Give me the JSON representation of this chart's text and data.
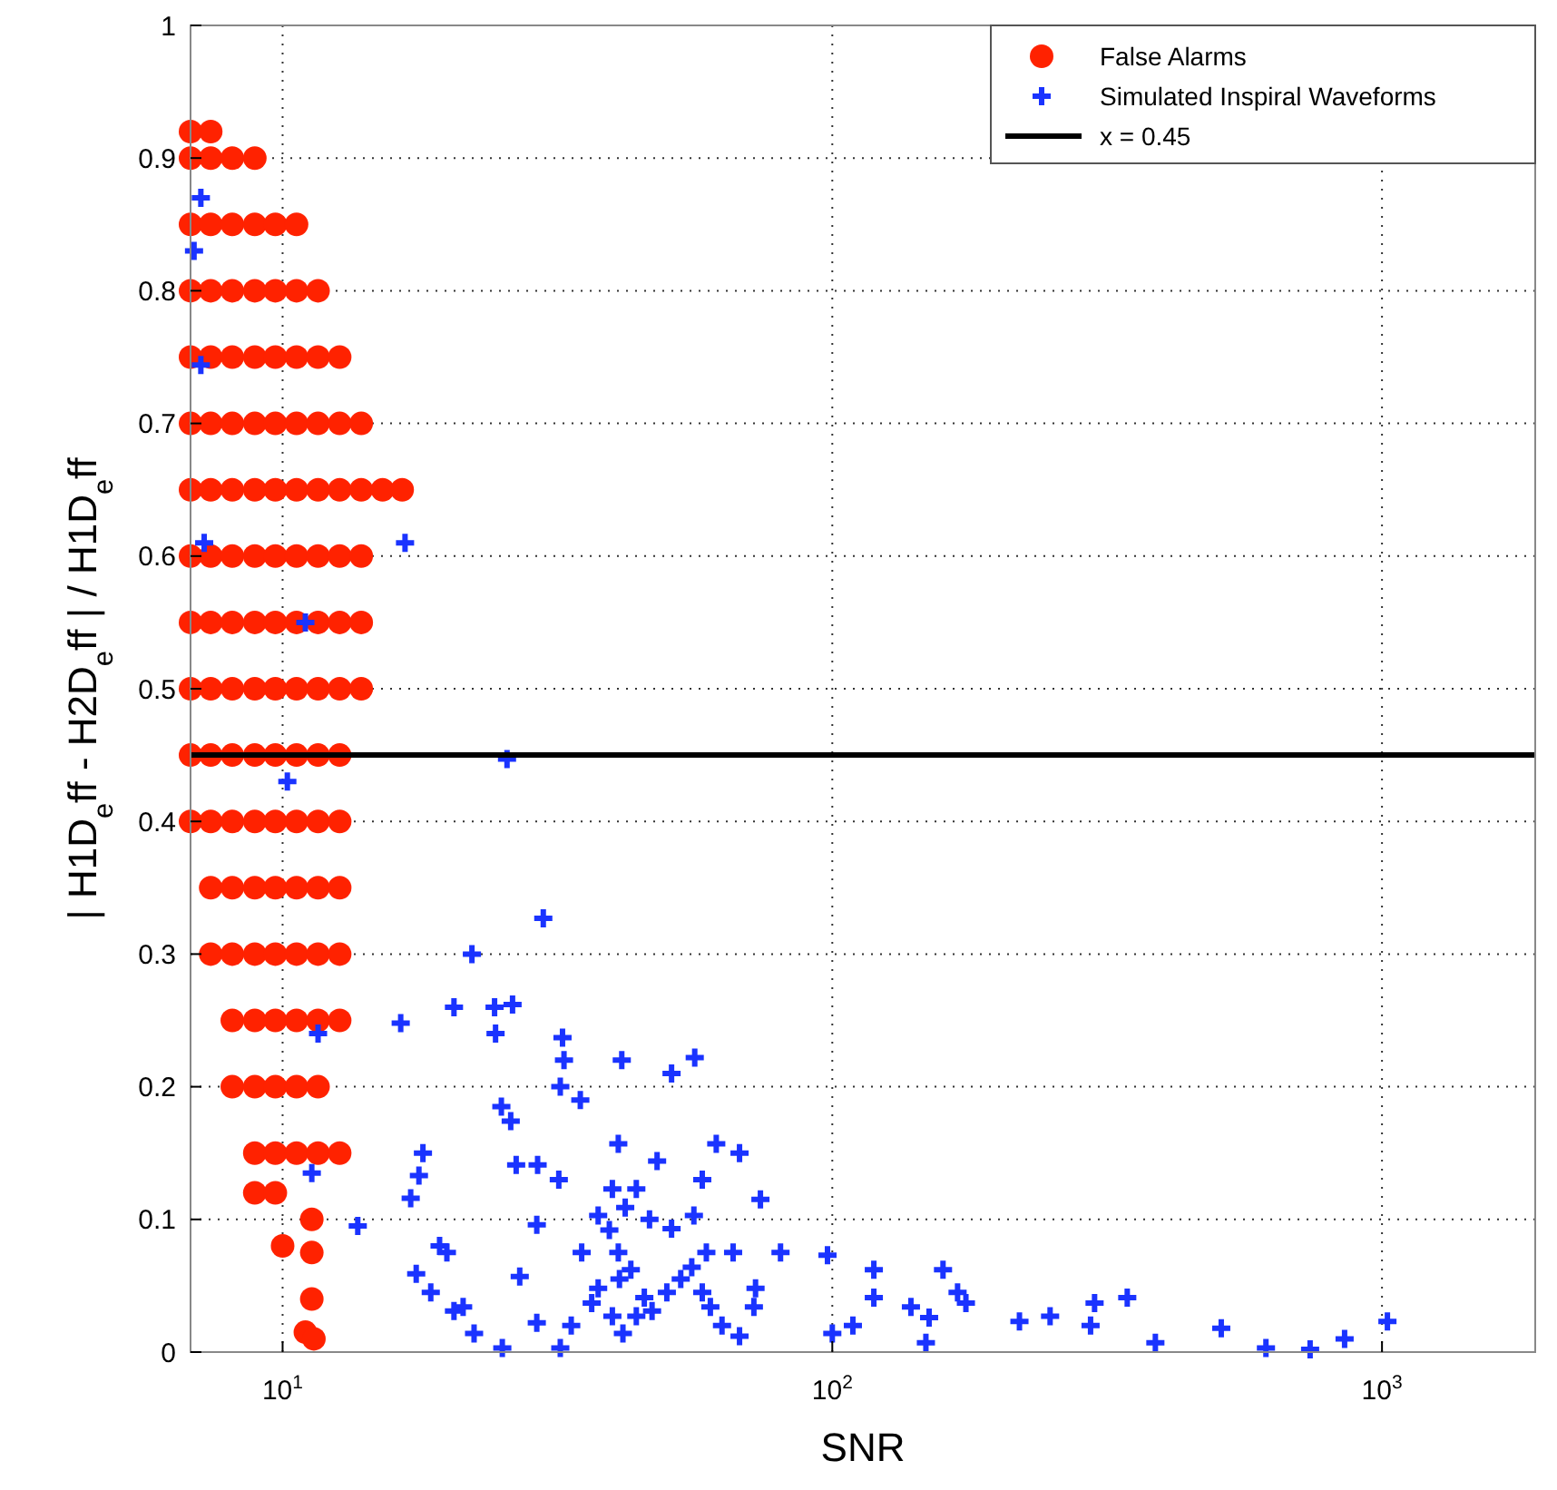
{
  "chart_data": {
    "type": "scatter",
    "xlabel": "SNR",
    "ylabel": "| H1D$_{e}$ff - H2D$_{e}$ff | / H1D$_{e}$ff",
    "log": "x",
    "grid": true,
    "legend": "top right",
    "xlim": [
      6.8,
      1900
    ],
    "ylim": [
      0,
      1
    ],
    "xticks": [
      {
        "value": 10,
        "label": "10$^{1}$"
      },
      {
        "value": 100,
        "label": "10$^{2}$"
      },
      {
        "value": 1000,
        "label": "10$^{3}$"
      }
    ],
    "yticks": [
      0,
      0.1,
      0.2,
      0.3,
      0.4,
      0.5,
      0.6,
      0.7,
      0.8,
      0.9,
      1
    ],
    "ref_lines": [
      {
        "axis": "y",
        "value": 0.45,
        "label": "x = 0.45",
        "color": "#000000",
        "line_style": "solid"
      }
    ],
    "series": [
      {
        "name": "False Alarms",
        "color": "#ff2200",
        "marker": "circle",
        "x": [
          6.8,
          7.4,
          6.8,
          7.4,
          8.1,
          8.9,
          6.8,
          7.4,
          8.1,
          8.9,
          9.7,
          10.6,
          6.8,
          7.4,
          8.1,
          8.9,
          9.7,
          10.6,
          11.6,
          6.8,
          7.4,
          8.1,
          8.9,
          9.7,
          10.6,
          11.6,
          12.7,
          6.8,
          7.4,
          8.1,
          8.9,
          9.7,
          10.6,
          11.6,
          12.7,
          13.9,
          6.8,
          7.4,
          8.1,
          8.9,
          9.7,
          10.6,
          11.6,
          12.7,
          13.9,
          15.2,
          16.5,
          6.8,
          7.4,
          8.1,
          8.9,
          9.7,
          10.6,
          11.6,
          12.7,
          13.9,
          6.8,
          7.4,
          8.1,
          8.9,
          9.7,
          10.6,
          11.6,
          12.7,
          13.9,
          6.8,
          7.4,
          8.1,
          8.9,
          9.7,
          10.6,
          11.6,
          12.7,
          13.9,
          6.8,
          7.4,
          8.1,
          8.9,
          9.7,
          10.6,
          11.6,
          12.7,
          6.8,
          7.4,
          8.1,
          8.9,
          9.7,
          10.6,
          11.6,
          12.7,
          7.4,
          8.1,
          8.9,
          9.7,
          10.6,
          11.6,
          12.7,
          7.4,
          8.1,
          8.9,
          9.7,
          10.6,
          11.6,
          12.7,
          8.1,
          8.9,
          9.7,
          10.6,
          11.6,
          12.7,
          8.1,
          8.9,
          9.7,
          10.6,
          11.6,
          8.9,
          9.7,
          10.6,
          11.6,
          12.7,
          8.9,
          9.7,
          10,
          11.3,
          11.3,
          11.3,
          11,
          11.4
        ],
        "values": [
          0.92,
          0.92,
          0.9,
          0.9,
          0.9,
          0.9,
          0.85,
          0.85,
          0.85,
          0.85,
          0.85,
          0.85,
          0.8,
          0.8,
          0.8,
          0.8,
          0.8,
          0.8,
          0.8,
          0.75,
          0.75,
          0.75,
          0.75,
          0.75,
          0.75,
          0.75,
          0.75,
          0.7,
          0.7,
          0.7,
          0.7,
          0.7,
          0.7,
          0.7,
          0.7,
          0.7,
          0.65,
          0.65,
          0.65,
          0.65,
          0.65,
          0.65,
          0.65,
          0.65,
          0.65,
          0.65,
          0.65,
          0.6,
          0.6,
          0.6,
          0.6,
          0.6,
          0.6,
          0.6,
          0.6,
          0.6,
          0.55,
          0.55,
          0.55,
          0.55,
          0.55,
          0.55,
          0.55,
          0.55,
          0.55,
          0.5,
          0.5,
          0.5,
          0.5,
          0.5,
          0.5,
          0.5,
          0.5,
          0.5,
          0.45,
          0.45,
          0.45,
          0.45,
          0.45,
          0.45,
          0.45,
          0.45,
          0.4,
          0.4,
          0.4,
          0.4,
          0.4,
          0.4,
          0.4,
          0.4,
          0.35,
          0.35,
          0.35,
          0.35,
          0.35,
          0.35,
          0.35,
          0.3,
          0.3,
          0.3,
          0.3,
          0.3,
          0.3,
          0.3,
          0.25,
          0.25,
          0.25,
          0.25,
          0.25,
          0.25,
          0.2,
          0.2,
          0.2,
          0.2,
          0.2,
          0.15,
          0.15,
          0.15,
          0.15,
          0.15,
          0.12,
          0.12,
          0.08,
          0.1,
          0.075,
          0.04,
          0.015,
          0.01
        ]
      },
      {
        "name": "Simulated Inspiral Waveforms",
        "color": "#1a33ff",
        "marker": "cross",
        "x": [
          6.9,
          7.1,
          7.1,
          7.2,
          16.7,
          11,
          10.2,
          25.6,
          11.6,
          11.3,
          13.7,
          16.4,
          22.1,
          29.8,
          20.5,
          24.3,
          26.2,
          24.4,
          32.3,
          32.5,
          32,
          34.8,
          41.4,
          51,
          56.2,
          61.5,
          25,
          26,
          18,
          17.7,
          17.1,
          26.6,
          29.1,
          40.8,
          39.8,
          39.3,
          44,
          48,
          58,
          67.8,
          74,
          80.5,
          98,
          119,
          119,
          139,
          150,
          159,
          169,
          175,
          295,
          300,
          344,
          387,
          510,
          615,
          740,
          855,
          1023,
          219,
          249,
          100,
          109,
          148,
          17.5,
          18.6,
          20.5,
          22.3,
          25.1,
          19.3,
          19.9,
          21.3,
          27,
          29,
          32,
          33.5,
          36.5,
          37.5,
          41,
          43,
          45.5,
          47,
          50,
          53,
          55.5,
          58,
          60,
          63,
          67.8,
          72,
          72.5,
          29,
          31.8,
          37.5,
          42,
          46.5,
          51,
          56,
          59,
          66,
          40.8,
          39.8,
          41.6,
          35,
          44
        ],
        "values": [
          0.83,
          0.87,
          0.744,
          0.61,
          0.61,
          0.55,
          0.43,
          0.447,
          0.24,
          0.135,
          0.095,
          0.248,
          0.3,
          0.327,
          0.26,
          0.26,
          0.262,
          0.24,
          0.237,
          0.22,
          0.2,
          0.19,
          0.22,
          0.21,
          0.222,
          0.157,
          0.185,
          0.174,
          0.15,
          0.133,
          0.116,
          0.141,
          0.141,
          0.157,
          0.123,
          0.092,
          0.123,
          0.144,
          0.13,
          0.15,
          0.115,
          0.075,
          0.073,
          0.062,
          0.041,
          0.034,
          0.026,
          0.062,
          0.045,
          0.037,
          0.02,
          0.037,
          0.041,
          0.007,
          0.018,
          0.003,
          0.002,
          0.01,
          0.023,
          0.023,
          0.027,
          0.014,
          0.02,
          0.007,
          0.059,
          0.045,
          0.031,
          0.014,
          0.003,
          0.08,
          0.075,
          0.034,
          0.057,
          0.022,
          0.003,
          0.02,
          0.037,
          0.048,
          0.055,
          0.062,
          0.041,
          0.031,
          0.045,
          0.055,
          0.064,
          0.045,
          0.034,
          0.02,
          0.012,
          0.034,
          0.048,
          0.096,
          0.13,
          0.103,
          0.109,
          0.1,
          0.093,
          0.103,
          0.075,
          0.075,
          0.075,
          0.027,
          0.014,
          0.075,
          0.027
        ]
      }
    ]
  }
}
